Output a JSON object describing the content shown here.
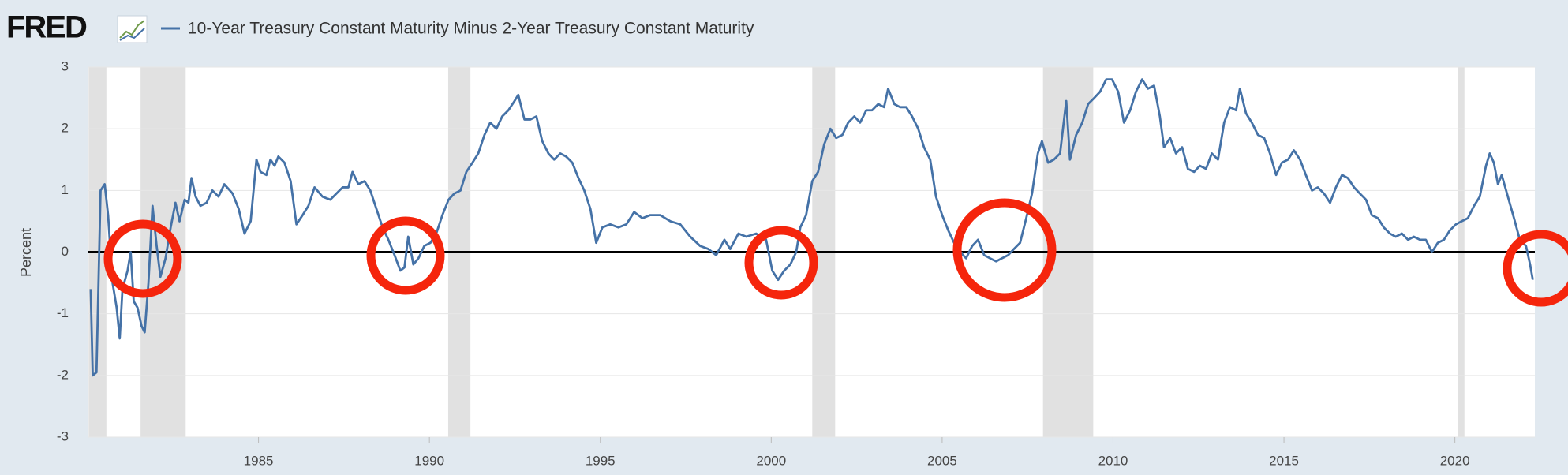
{
  "chart_data": {
    "type": "line",
    "brand": "FRED",
    "ylabel": "Percent",
    "xlim": [
      1980,
      2022.34
    ],
    "xticks": [
      1985,
      1990,
      1995,
      2000,
      2005,
      2010,
      2015,
      2020
    ],
    "ylim": [
      -3,
      3
    ],
    "yticks": [
      -3,
      -2,
      -1,
      0,
      1,
      2,
      3
    ],
    "grid": true,
    "reference_line": 0,
    "shaded_periods": [
      [
        1980.03,
        1980.55
      ],
      [
        1981.55,
        1982.87
      ],
      [
        1990.55,
        1991.2
      ],
      [
        2001.2,
        2001.87
      ],
      [
        2007.95,
        2009.42
      ],
      [
        2020.1,
        2020.28
      ]
    ],
    "series": [
      {
        "name": "10-Year Treasury Constant Maturity Minus 2-Year Treasury Constant Maturity",
        "color": "#4572a7",
        "x": [
          1980.09,
          1980.15,
          1980.26,
          1980.38,
          1980.5,
          1980.6,
          1980.73,
          1980.85,
          1980.94,
          1981.02,
          1981.17,
          1981.26,
          1981.35,
          1981.46,
          1981.58,
          1981.67,
          1981.78,
          1981.9,
          1982.02,
          1982.13,
          1982.28,
          1982.43,
          1982.57,
          1982.69,
          1982.84,
          1982.95,
          1983.04,
          1983.16,
          1983.3,
          1983.48,
          1983.65,
          1983.83,
          1984.0,
          1984.24,
          1984.42,
          1984.59,
          1984.77,
          1984.94,
          1985.06,
          1985.23,
          1985.35,
          1985.47,
          1985.58,
          1985.76,
          1985.94,
          1986.11,
          1986.29,
          1986.46,
          1986.64,
          1986.87,
          1987.1,
          1987.28,
          1987.46,
          1987.63,
          1987.75,
          1987.92,
          1988.1,
          1988.27,
          1988.45,
          1988.63,
          1988.8,
          1988.98,
          1989.15,
          1989.27,
          1989.38,
          1989.53,
          1989.68,
          1989.85,
          1990.03,
          1990.2,
          1990.38,
          1990.56,
          1990.73,
          1990.91,
          1991.08,
          1991.26,
          1991.43,
          1991.61,
          1991.78,
          1991.96,
          1992.13,
          1992.31,
          1992.49,
          1992.6,
          1992.78,
          1992.95,
          1993.13,
          1993.3,
          1993.48,
          1993.65,
          1993.83,
          1994.0,
          1994.18,
          1994.36,
          1994.53,
          1994.71,
          1994.88,
          1995.06,
          1995.29,
          1995.53,
          1995.76,
          1995.99,
          1996.23,
          1996.46,
          1996.75,
          1997.05,
          1997.34,
          1997.63,
          1997.92,
          1998.16,
          1998.39,
          1998.63,
          1998.8,
          1999.04,
          1999.27,
          1999.56,
          1999.85,
          2000.03,
          2000.2,
          2000.38,
          2000.56,
          2000.73,
          2000.85,
          2001.02,
          2001.2,
          2001.37,
          2001.55,
          2001.73,
          2001.9,
          2002.08,
          2002.25,
          2002.43,
          2002.6,
          2002.78,
          2002.95,
          2003.13,
          2003.3,
          2003.42,
          2003.6,
          2003.77,
          2003.95,
          2004.12,
          2004.3,
          2004.47,
          2004.65,
          2004.82,
          2005.0,
          2005.18,
          2005.35,
          2005.53,
          2005.7,
          2005.88,
          2006.05,
          2006.23,
          2006.4,
          2006.58,
          2006.75,
          2006.93,
          2007.1,
          2007.28,
          2007.46,
          2007.63,
          2007.8,
          2007.92,
          2008.1,
          2008.27,
          2008.45,
          2008.63,
          2008.74,
          2008.92,
          2009.1,
          2009.27,
          2009.45,
          2009.62,
          2009.8,
          2009.97,
          2010.15,
          2010.32,
          2010.5,
          2010.67,
          2010.85,
          2011.02,
          2011.2,
          2011.37,
          2011.49,
          2011.67,
          2011.84,
          2012.02,
          2012.19,
          2012.37,
          2012.54,
          2012.72,
          2012.89,
          2013.07,
          2013.25,
          2013.42,
          2013.6,
          2013.71,
          2013.89,
          2014.06,
          2014.24,
          2014.42,
          2014.59,
          2014.77,
          2014.94,
          2015.12,
          2015.29,
          2015.47,
          2015.64,
          2015.82,
          2015.99,
          2016.17,
          2016.35,
          2016.52,
          2016.7,
          2016.87,
          2017.05,
          2017.22,
          2017.4,
          2017.57,
          2017.75,
          2017.92,
          2018.1,
          2018.27,
          2018.45,
          2018.63,
          2018.8,
          2018.98,
          2019.15,
          2019.33,
          2019.5,
          2019.68,
          2019.85,
          2020.03,
          2020.2,
          2020.38,
          2020.56,
          2020.73,
          2020.91,
          2021.02,
          2021.14,
          2021.26,
          2021.37,
          2021.55,
          2021.73,
          2021.9,
          2022.08,
          2022.2,
          2022.28
        ],
        "values": [
          -0.6,
          -2.0,
          -1.95,
          1.0,
          1.1,
          0.6,
          -0.5,
          -0.9,
          -1.4,
          -0.6,
          -0.3,
          0.0,
          -0.8,
          -0.9,
          -1.2,
          -1.3,
          -0.5,
          0.75,
          0.1,
          -0.4,
          -0.1,
          0.4,
          0.8,
          0.5,
          0.85,
          0.8,
          1.2,
          0.9,
          0.75,
          0.8,
          1.0,
          0.9,
          1.1,
          0.95,
          0.7,
          0.3,
          0.5,
          1.5,
          1.3,
          1.25,
          1.5,
          1.4,
          1.55,
          1.45,
          1.15,
          0.45,
          0.6,
          0.75,
          1.05,
          0.9,
          0.85,
          0.95,
          1.05,
          1.05,
          1.3,
          1.1,
          1.15,
          1.0,
          0.7,
          0.4,
          0.2,
          -0.05,
          -0.3,
          -0.25,
          0.25,
          -0.2,
          -0.1,
          0.1,
          0.15,
          0.3,
          0.6,
          0.85,
          0.95,
          1.0,
          1.3,
          1.45,
          1.6,
          1.9,
          2.1,
          2.0,
          2.2,
          2.3,
          2.45,
          2.55,
          2.15,
          2.15,
          2.2,
          1.8,
          1.6,
          1.5,
          1.6,
          1.55,
          1.45,
          1.2,
          1.0,
          0.7,
          0.15,
          0.4,
          0.45,
          0.4,
          0.45,
          0.65,
          0.55,
          0.6,
          0.6,
          0.5,
          0.45,
          0.25,
          0.1,
          0.05,
          -0.05,
          0.2,
          0.05,
          0.3,
          0.25,
          0.3,
          0.2,
          -0.3,
          -0.45,
          -0.3,
          -0.2,
          0.0,
          0.4,
          0.6,
          1.15,
          1.3,
          1.75,
          2.0,
          1.85,
          1.9,
          2.1,
          2.2,
          2.1,
          2.3,
          2.3,
          2.4,
          2.35,
          2.65,
          2.4,
          2.35,
          2.35,
          2.2,
          2.0,
          1.7,
          1.5,
          0.9,
          0.6,
          0.35,
          0.15,
          0.0,
          -0.1,
          0.1,
          0.2,
          -0.05,
          -0.1,
          -0.15,
          -0.1,
          -0.05,
          0.05,
          0.15,
          0.55,
          0.95,
          1.6,
          1.8,
          1.45,
          1.5,
          1.6,
          2.45,
          1.5,
          1.9,
          2.1,
          2.4,
          2.5,
          2.6,
          2.8,
          2.8,
          2.6,
          2.1,
          2.3,
          2.6,
          2.8,
          2.65,
          2.7,
          2.2,
          1.7,
          1.85,
          1.6,
          1.7,
          1.35,
          1.3,
          1.4,
          1.35,
          1.6,
          1.5,
          2.1,
          2.35,
          2.3,
          2.65,
          2.25,
          2.1,
          1.9,
          1.85,
          1.6,
          1.25,
          1.45,
          1.5,
          1.65,
          1.5,
          1.25,
          1.0,
          1.05,
          0.95,
          0.8,
          1.05,
          1.25,
          1.2,
          1.05,
          0.95,
          0.85,
          0.6,
          0.55,
          0.4,
          0.3,
          0.25,
          0.3,
          0.2,
          0.25,
          0.2,
          0.2,
          0.0,
          0.15,
          0.2,
          0.35,
          0.45,
          0.5,
          0.55,
          0.75,
          0.9,
          1.4,
          1.6,
          1.45,
          1.1,
          1.25,
          0.9,
          0.55,
          0.2,
          0.1,
          -0.2,
          -0.45
        ]
      }
    ]
  }
}
